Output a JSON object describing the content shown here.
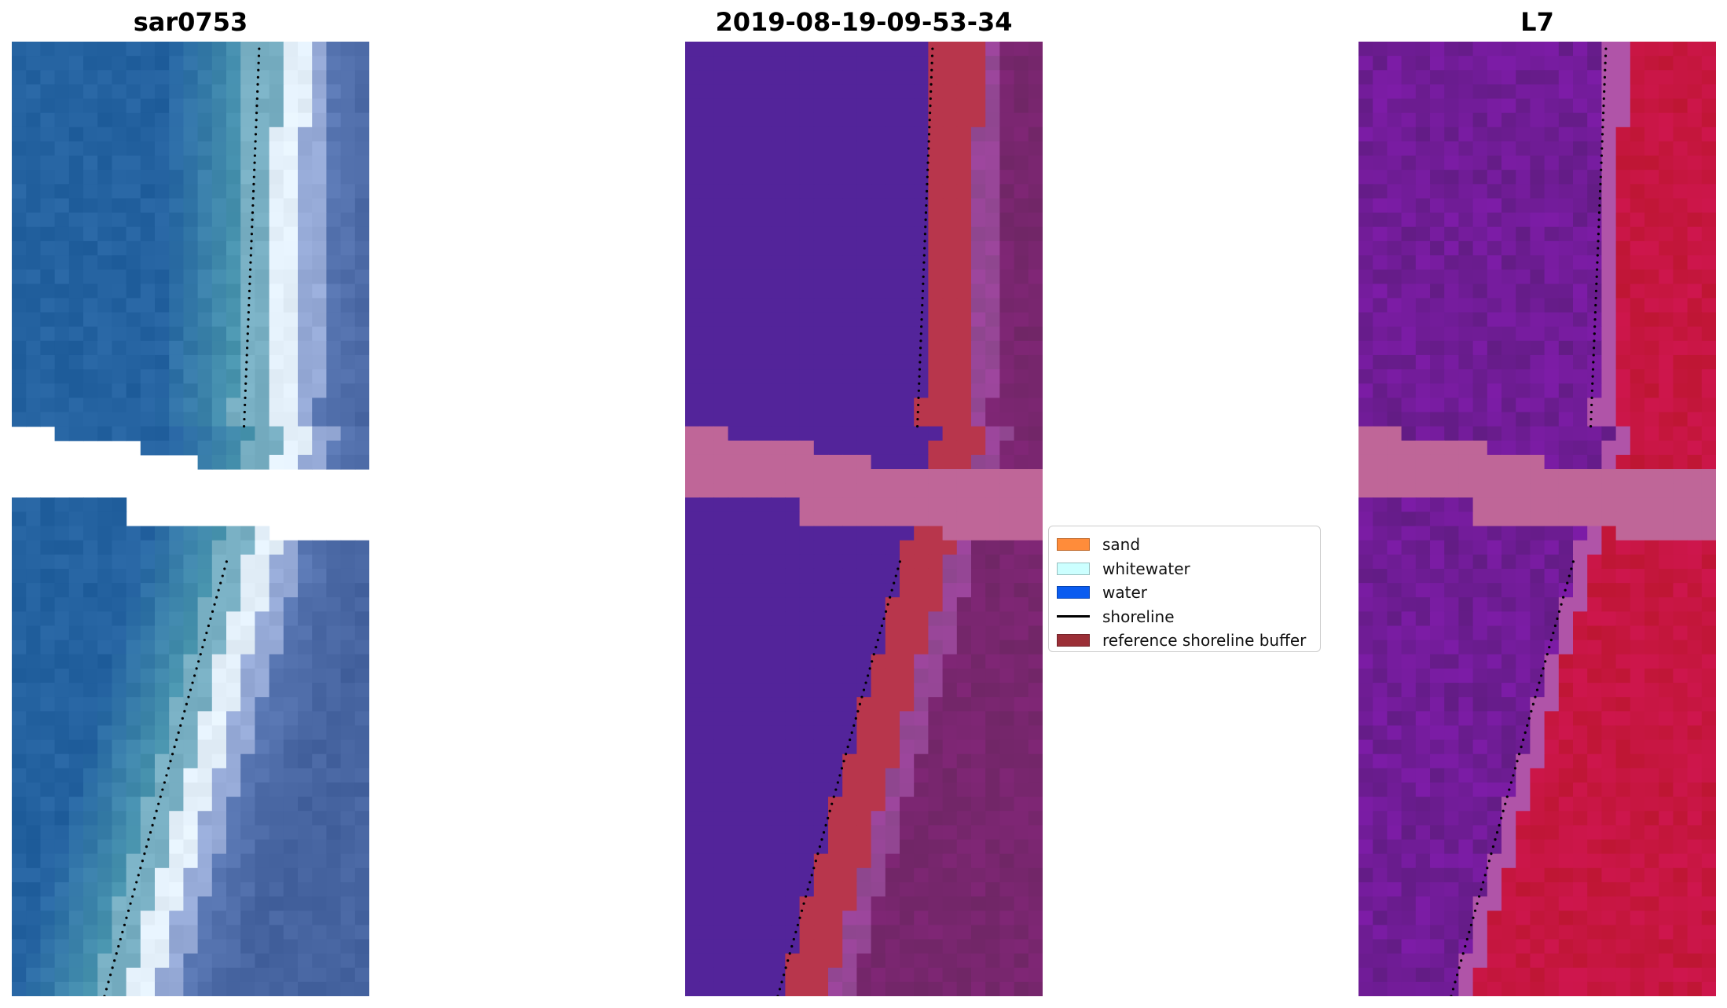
{
  "panels": [
    {
      "title": "sar0753",
      "style": "rgb"
    },
    {
      "title": "2019-08-19-09-53-34",
      "style": "classified"
    },
    {
      "title": "L7",
      "style": "index"
    }
  ],
  "legend": {
    "items": [
      {
        "label": "sand",
        "type": "patch",
        "color": "#ff8c3a"
      },
      {
        "label": "whitewater",
        "type": "patch",
        "color": "#ccffff"
      },
      {
        "label": "water",
        "type": "patch",
        "color": "#0a5cf0"
      },
      {
        "label": "shoreline",
        "type": "line",
        "color": "#000000"
      },
      {
        "label": "reference shoreline buffer",
        "type": "patch",
        "color": "#9b2f37"
      }
    ]
  }
}
